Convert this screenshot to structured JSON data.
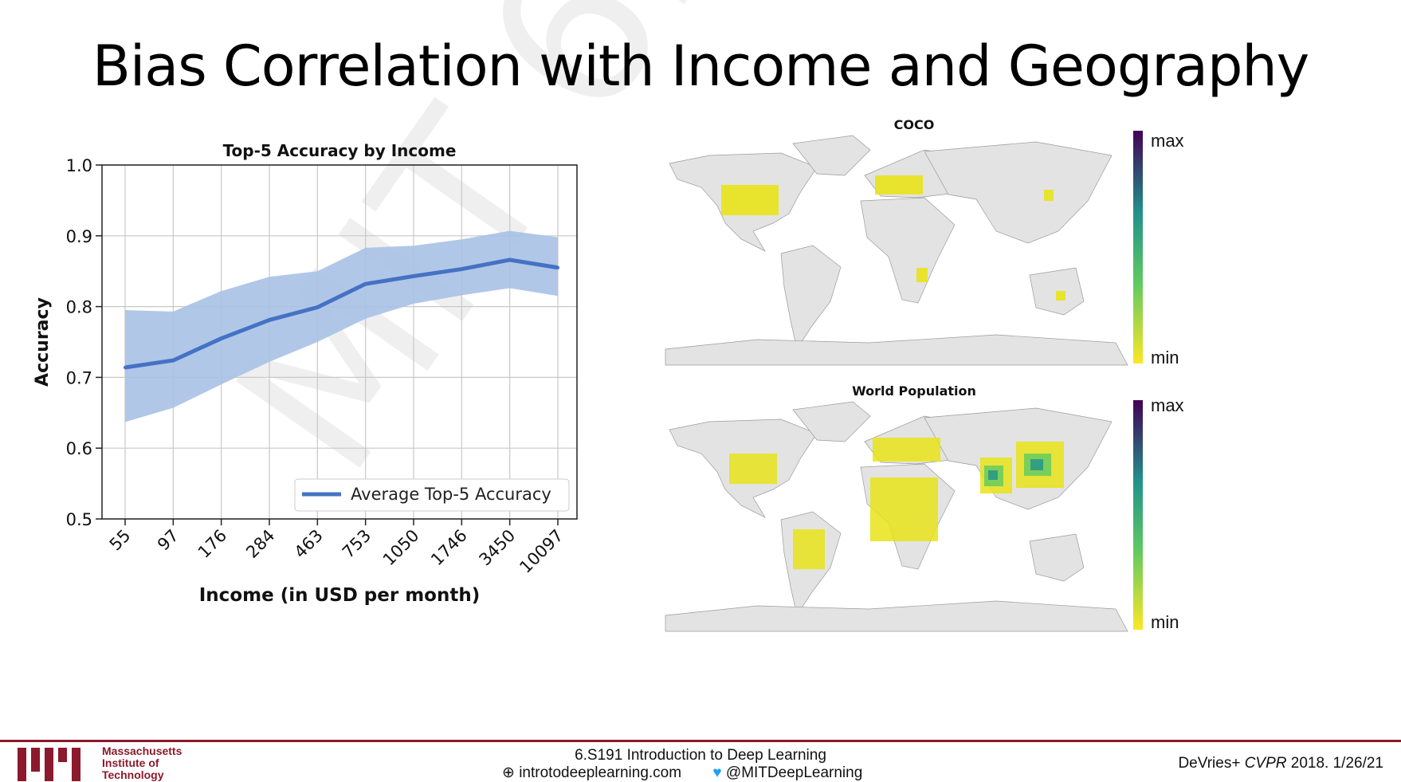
{
  "slide": {
    "title": "Bias Correlation with Income and Geography",
    "watermark": "MIT 6.S191"
  },
  "chart_data": {
    "type": "line",
    "title": "Top-5 Accuracy by Income",
    "xlabel": "Income (in USD per month)",
    "ylabel": "Accuracy",
    "categories": [
      "55",
      "97",
      "176",
      "284",
      "463",
      "753",
      "1050",
      "1746",
      "3450",
      "10097"
    ],
    "ylim": [
      0.5,
      1.0
    ],
    "yticks": [
      "0.5",
      "0.6",
      "0.7",
      "0.8",
      "0.9",
      "1.0"
    ],
    "grid": true,
    "legend_position": "bottom-right",
    "series": [
      {
        "name": "Average Top-5 Accuracy",
        "color": "#4472c4",
        "values": [
          0.714,
          0.724,
          0.755,
          0.781,
          0.799,
          0.832,
          0.843,
          0.853,
          0.866,
          0.855
        ],
        "lower": [
          0.637,
          0.657,
          0.69,
          0.722,
          0.75,
          0.783,
          0.804,
          0.816,
          0.826,
          0.815
        ],
        "upper": [
          0.795,
          0.793,
          0.822,
          0.842,
          0.85,
          0.883,
          0.886,
          0.895,
          0.907,
          0.898
        ]
      }
    ]
  },
  "maps": [
    {
      "title": "COCO",
      "scale_max": "max",
      "scale_min": "min"
    },
    {
      "title": "World Population",
      "scale_max": "max",
      "scale_min": "min"
    }
  ],
  "footer": {
    "institute": [
      "Massachusetts",
      "Institute of",
      "Technology"
    ],
    "course": "6.S191 Introduction to Deep Learning",
    "website": "introtodeeplearning.com",
    "twitter": "@MITDeepLearning",
    "citation_author": "DeVries+ ",
    "citation_venue": "CVPR",
    "citation_rest": " 2018.  1/26/21"
  },
  "colors": {
    "accent": "#8b1a2c",
    "series": "#4472c4",
    "band": "#a9c1e6",
    "land": "#e3e3e3"
  }
}
